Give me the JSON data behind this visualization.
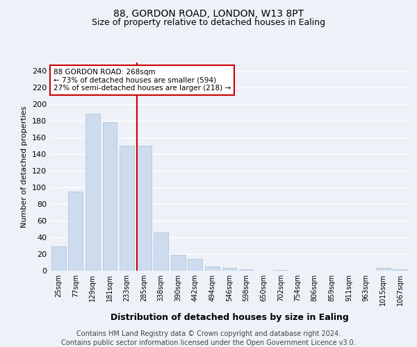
{
  "title": "88, GORDON ROAD, LONDON, W13 8PT",
  "subtitle": "Size of property relative to detached houses in Ealing",
  "xlabel": "Distribution of detached houses by size in Ealing",
  "ylabel": "Number of detached properties",
  "categories": [
    "25sqm",
    "77sqm",
    "129sqm",
    "181sqm",
    "233sqm",
    "285sqm",
    "338sqm",
    "390sqm",
    "442sqm",
    "494sqm",
    "546sqm",
    "598sqm",
    "650sqm",
    "702sqm",
    "754sqm",
    "806sqm",
    "859sqm",
    "911sqm",
    "963sqm",
    "1015sqm",
    "1067sqm"
  ],
  "values": [
    29,
    95,
    188,
    178,
    150,
    150,
    46,
    19,
    14,
    5,
    3,
    2,
    0,
    1,
    0,
    0,
    0,
    0,
    0,
    3,
    2
  ],
  "bar_color": "#ccdcee",
  "bar_edge_color": "#aabdd8",
  "vline_color": "#cc0000",
  "annotation_text": "88 GORDON ROAD: 268sqm\n← 73% of detached houses are smaller (594)\n27% of semi-detached houses are larger (218) →",
  "annotation_box_color": "#ffffff",
  "annotation_box_edge": "#cc0000",
  "ylim": [
    0,
    250
  ],
  "yticks": [
    0,
    20,
    40,
    60,
    80,
    100,
    120,
    140,
    160,
    180,
    200,
    220,
    240
  ],
  "footer_line1": "Contains HM Land Registry data © Crown copyright and database right 2024.",
  "footer_line2": "Contains public sector information licensed under the Open Government Licence v3.0.",
  "bg_color": "#eef2f8",
  "plot_bg_color": "#eef2f8",
  "grid_color": "#ffffff",
  "title_fontsize": 10,
  "subtitle_fontsize": 9,
  "footer_fontsize": 7,
  "vline_bar_index": 5
}
